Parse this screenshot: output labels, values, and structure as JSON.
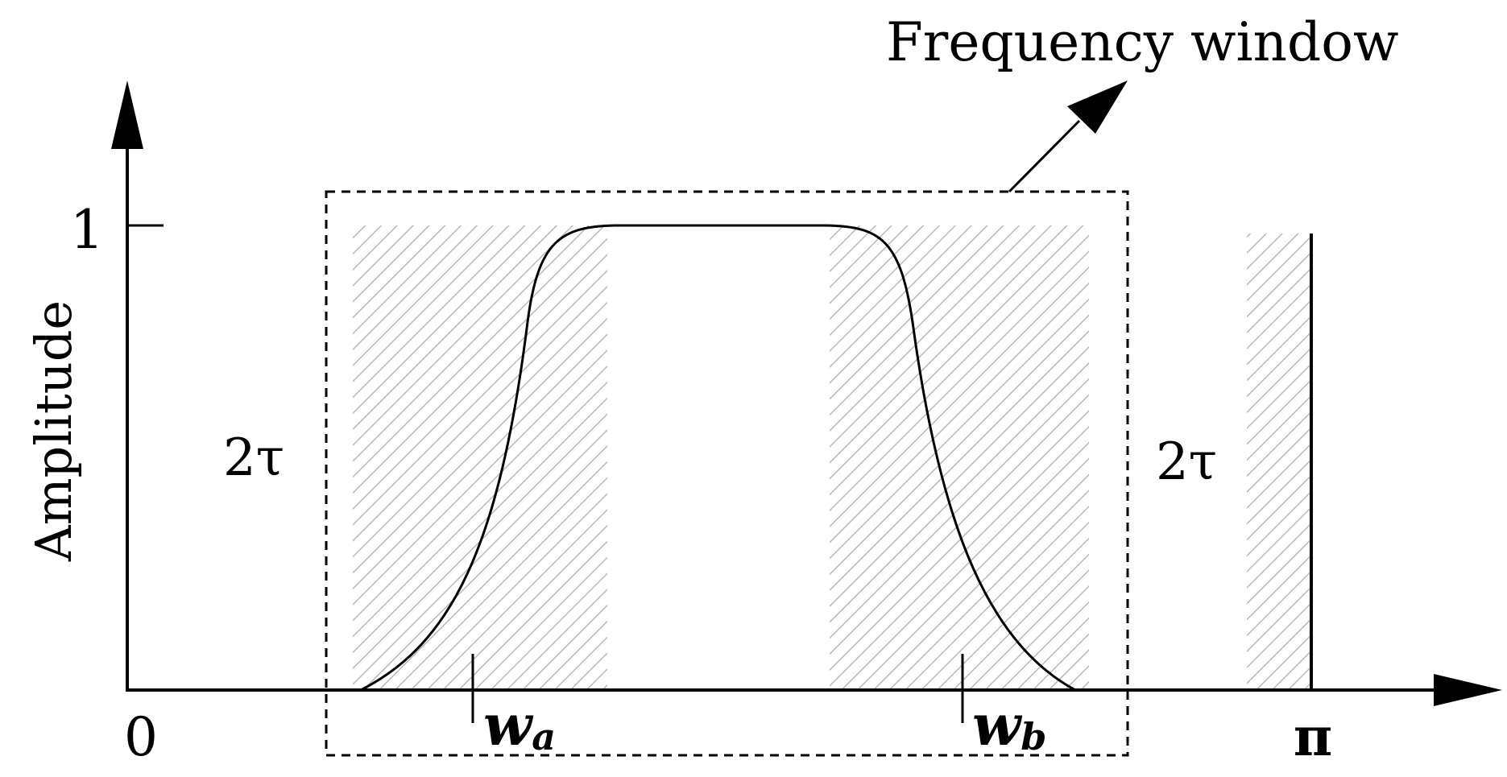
{
  "title": "Frequency window",
  "axes": {
    "ylabel": "Amplitude",
    "y_tick": "1",
    "x_origin": "0",
    "x_end": "π"
  },
  "band_labels": {
    "left": "2τ",
    "right": "2τ"
  },
  "markers": {
    "a_base": "w",
    "a_sub": "a",
    "b_base": "w",
    "b_sub": "b"
  },
  "colors": {
    "line": "#000000",
    "hatch": "#b8b8b8",
    "background": "#ffffff"
  }
}
